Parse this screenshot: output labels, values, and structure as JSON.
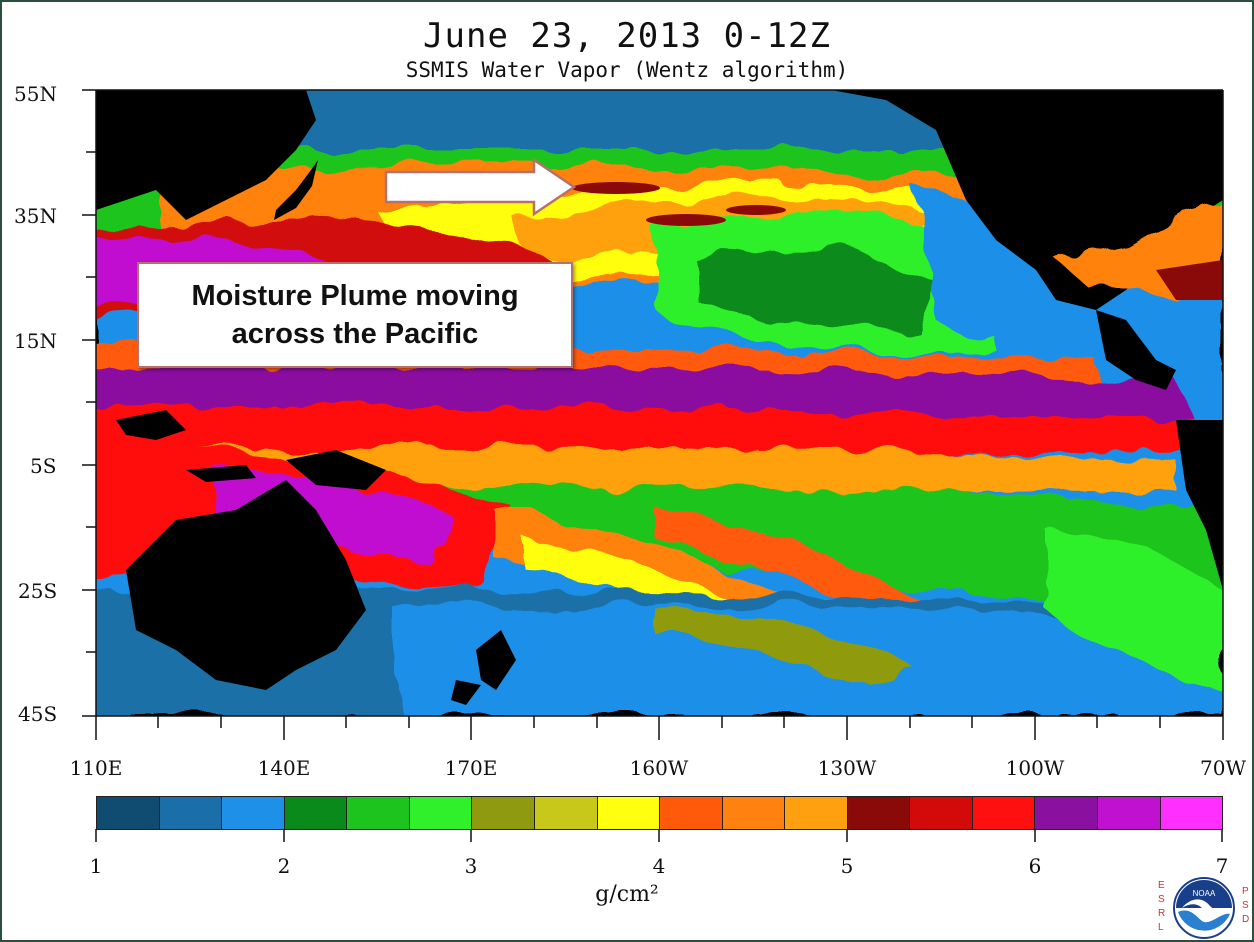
{
  "title": "June 23, 2013   0-12Z",
  "subtitle": "SSMIS Water Vapor (Wentz algorithm)",
  "callout": {
    "line1": "Moisture Plume moving",
    "line2": "across the Pacific"
  },
  "lat_labels": [
    "55N",
    "35N",
    "15N",
    "5S",
    "25S",
    "45S"
  ],
  "lon_labels": [
    "110E",
    "140E",
    "170E",
    "160W",
    "130W",
    "100W",
    "70W"
  ],
  "colorbar": {
    "ticks": [
      "1",
      "2",
      "3",
      "4",
      "5",
      "6",
      "7"
    ],
    "unit": "g/cm²",
    "colors": [
      "#0f4c70",
      "#1a6fa8",
      "#1f90e8",
      "#0a8a1a",
      "#1ec41e",
      "#2ff02a",
      "#8f9a10",
      "#c8c81a",
      "#ffff10",
      "#ff5a0a",
      "#ff8210",
      "#ffa010",
      "#8a0a0a",
      "#d20a0a",
      "#ff1010",
      "#8a10a0",
      "#c010d0",
      "#ff30ff"
    ]
  },
  "logo": {
    "left_letters": [
      "E",
      "S",
      "R",
      "L"
    ],
    "right_letters": [
      "P",
      "S",
      "D"
    ],
    "emblem": "noaa-logo",
    "emblem_text": "NOAA"
  },
  "colors": {
    "land": "#000000",
    "frame": "#2a4f3f"
  }
}
